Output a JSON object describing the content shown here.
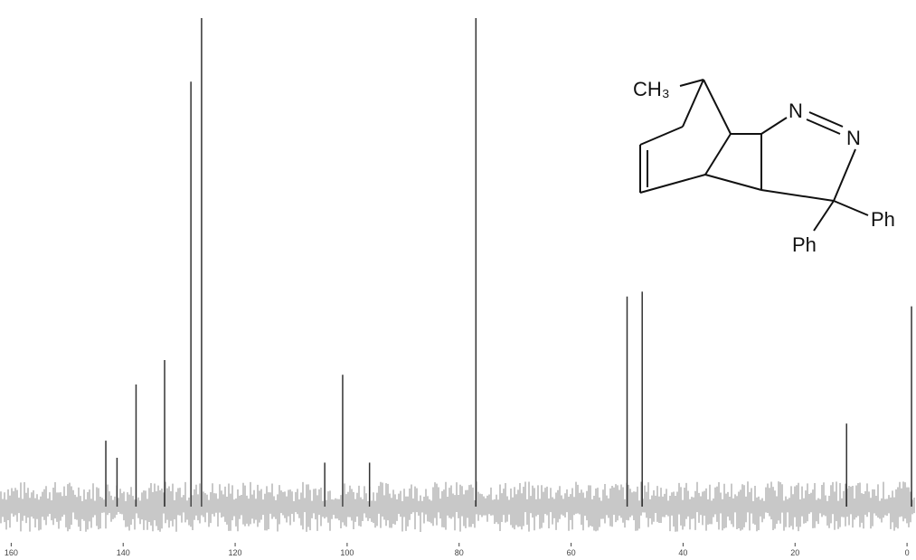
{
  "chart_data": {
    "type": "spectrum",
    "x": [
      143.1,
      141.1,
      137.7,
      132.6,
      127.9,
      126.0,
      104.0,
      100.8,
      96.0,
      77.0,
      50.0,
      47.3,
      10.8,
      -0.8
    ],
    "values": [
      13.5,
      10,
      25,
      30,
      87,
      100,
      9,
      27,
      9,
      100,
      43,
      44,
      17,
      41
    ],
    "color": "#333333",
    "xlim": [
      162,
      -1.6
    ],
    "xticks": [
      160,
      140,
      120,
      100,
      80,
      60,
      40,
      20,
      0
    ],
    "ylim": [
      0,
      100
    ]
  },
  "structure": {
    "labels": [
      "CH₃",
      "N",
      "N",
      "Ph",
      "Ph"
    ]
  }
}
